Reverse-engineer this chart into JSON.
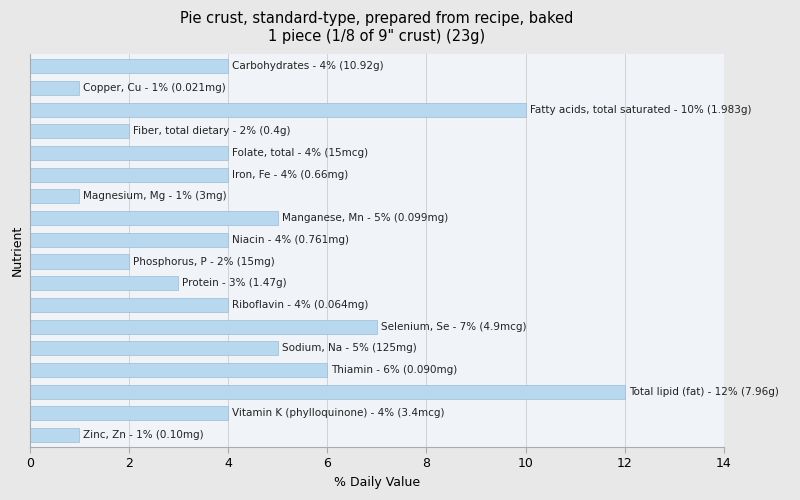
{
  "title": "Pie crust, standard-type, prepared from recipe, baked\n1 piece (1/8 of 9\" crust) (23g)",
  "xlabel": "% Daily Value",
  "ylabel": "Nutrient",
  "background_color": "#e8e8e8",
  "plot_background_color": "#f0f4f8",
  "bar_color": "#b8d8f0",
  "bar_edge_color": "#9abcd8",
  "xlim": [
    0,
    14
  ],
  "xticks": [
    0,
    2,
    4,
    6,
    8,
    10,
    12,
    14
  ],
  "nutrients": [
    "Carbohydrates - 4% (10.92g)",
    "Copper, Cu - 1% (0.021mg)",
    "Fatty acids, total saturated - 10% (1.983g)",
    "Fiber, total dietary - 2% (0.4g)",
    "Folate, total - 4% (15mcg)",
    "Iron, Fe - 4% (0.66mg)",
    "Magnesium, Mg - 1% (3mg)",
    "Manganese, Mn - 5% (0.099mg)",
    "Niacin - 4% (0.761mg)",
    "Phosphorus, P - 2% (15mg)",
    "Protein - 3% (1.47g)",
    "Riboflavin - 4% (0.064mg)",
    "Selenium, Se - 7% (4.9mcg)",
    "Sodium, Na - 5% (125mg)",
    "Thiamin - 6% (0.090mg)",
    "Total lipid (fat) - 12% (7.96g)",
    "Vitamin K (phylloquinone) - 4% (3.4mcg)",
    "Zinc, Zn - 1% (0.10mg)"
  ],
  "values": [
    4,
    1,
    10,
    2,
    4,
    4,
    1,
    5,
    4,
    2,
    3,
    4,
    7,
    5,
    6,
    12,
    4,
    1
  ],
  "figsize": [
    8.0,
    5.0
  ],
  "dpi": 100,
  "label_fontsize": 7.5,
  "title_fontsize": 10.5,
  "axis_label_fontsize": 9,
  "tick_fontsize": 9
}
